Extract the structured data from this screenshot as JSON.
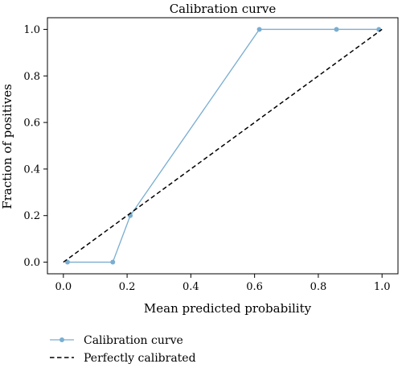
{
  "chart_data": {
    "type": "line",
    "title": "Calibration curve",
    "xlabel": "Mean predicted probability",
    "ylabel": "Fraction of positives",
    "xlim": [
      -0.05,
      1.05
    ],
    "ylim": [
      -0.05,
      1.05
    ],
    "xticks": [
      "0.0",
      "0.2",
      "0.4",
      "0.6",
      "0.8",
      "1.0"
    ],
    "yticks": [
      "0.0",
      "0.2",
      "0.4",
      "0.6",
      "0.8",
      "1.0"
    ],
    "grid": false,
    "legend_position": "bottom",
    "series": [
      {
        "name": "Calibration curve",
        "style": "solid-with-markers",
        "color": "#7aaed0",
        "x": [
          0.013,
          0.155,
          0.21,
          0.615,
          0.857,
          0.99
        ],
        "y": [
          0.0,
          0.0,
          0.2,
          1.0,
          1.0,
          1.0
        ]
      },
      {
        "name": "Perfectly calibrated",
        "style": "dashed",
        "color": "#000000",
        "x": [
          0.0,
          1.0
        ],
        "y": [
          0.0,
          1.0
        ]
      }
    ]
  }
}
